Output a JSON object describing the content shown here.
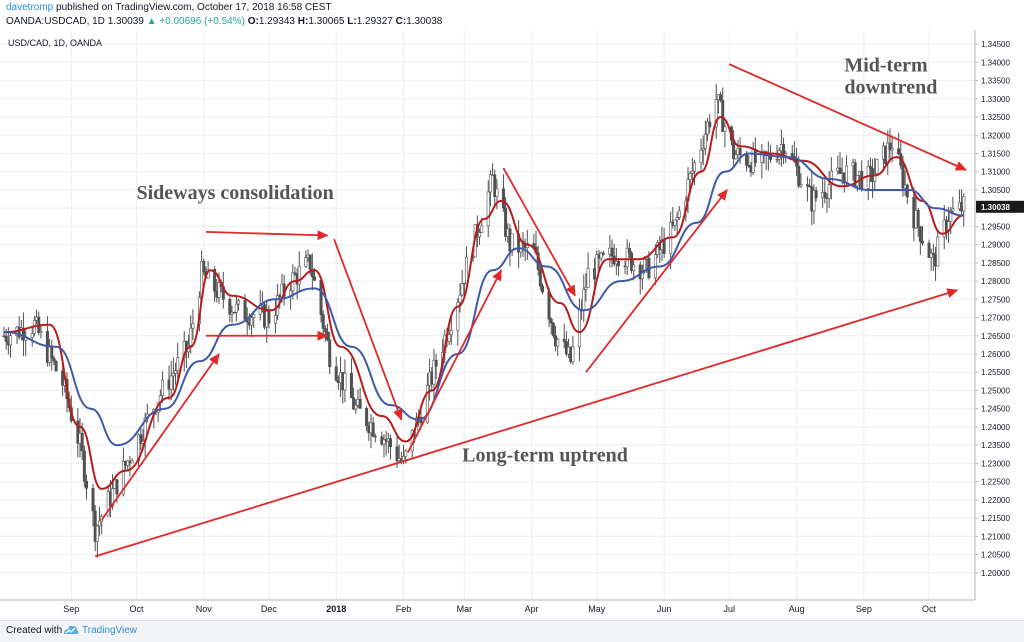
{
  "header": {
    "user": "davetromp",
    "published": "published on TradingView.com, October 17, 2018 16:58 CEST",
    "symbol": "OANDA:USDCAD, 1D",
    "price": "1.30039",
    "change": "+0.00696 (+0.54%)",
    "o_label": "O:",
    "o_value": "1.29343",
    "h_label": "H:",
    "h_value": "1.30065",
    "l_label": "L:",
    "l_value": "1.29327",
    "c_label": "C:",
    "c_value": "1.30038"
  },
  "footer": {
    "made_with": "Created with",
    "brand": "TradingView",
    "logo_icon": "tradingview-logo-icon"
  },
  "chart_data": {
    "type": "candlestick",
    "title": "USD/CAD, 1D, OANDA",
    "xlabel": "",
    "ylabel": "",
    "ylim": [
      1.195,
      1.3475
    ],
    "y_ticks": [
      "1.20000",
      "1.20500",
      "1.21000",
      "1.21500",
      "1.22000",
      "1.22500",
      "1.23000",
      "1.23500",
      "1.24000",
      "1.24500",
      "1.25000",
      "1.25500",
      "1.26000",
      "1.26500",
      "1.27000",
      "1.27500",
      "1.28000",
      "1.28500",
      "1.29000",
      "1.29500",
      "1.30000",
      "1.30500",
      "1.31000",
      "1.31500",
      "1.32000",
      "1.32500",
      "1.33000",
      "1.33500",
      "1.34000",
      "1.34500"
    ],
    "last_price_label": "1.30038",
    "x_range": [
      "2017-08-01",
      "2018-10-30"
    ],
    "x_ticks": [
      {
        "label": "Sep",
        "date": "2017-09-01"
      },
      {
        "label": "Oct",
        "date": "2017-10-01"
      },
      {
        "label": "Nov",
        "date": "2017-11-01"
      },
      {
        "label": "Dec",
        "date": "2017-12-01"
      },
      {
        "label": "2018",
        "date": "2018-01-01"
      },
      {
        "label": "Feb",
        "date": "2018-02-01"
      },
      {
        "label": "Mar",
        "date": "2018-03-01"
      },
      {
        "label": "Apr",
        "date": "2018-04-01"
      },
      {
        "label": "May",
        "date": "2018-05-01"
      },
      {
        "label": "Jun",
        "date": "2018-06-01"
      },
      {
        "label": "Jul",
        "date": "2018-07-01"
      },
      {
        "label": "Aug",
        "date": "2018-08-01"
      },
      {
        "label": "Sep",
        "date": "2018-09-01"
      },
      {
        "label": "Oct",
        "date": "2018-10-01"
      }
    ],
    "price_path": [
      [
        "2017-08-01",
        1.265
      ],
      [
        "2017-08-15",
        1.268
      ],
      [
        "2017-08-28",
        1.252
      ],
      [
        "2017-09-05",
        1.235
      ],
      [
        "2017-09-12",
        1.212
      ],
      [
        "2017-09-20",
        1.222
      ],
      [
        "2017-09-28",
        1.232
      ],
      [
        "2017-10-10",
        1.247
      ],
      [
        "2017-10-25",
        1.262
      ],
      [
        "2017-10-31",
        1.282
      ],
      [
        "2017-11-06",
        1.278
      ],
      [
        "2017-11-16",
        1.272
      ],
      [
        "2017-12-01",
        1.27
      ],
      [
        "2017-12-11",
        1.28
      ],
      [
        "2017-12-20",
        1.285
      ],
      [
        "2017-12-29",
        1.26
      ],
      [
        "2018-01-10",
        1.245
      ],
      [
        "2018-01-22",
        1.238
      ],
      [
        "2018-02-01",
        1.23
      ],
      [
        "2018-02-12",
        1.25
      ],
      [
        "2018-02-23",
        1.27
      ],
      [
        "2018-03-06",
        1.292
      ],
      [
        "2018-03-14",
        1.308
      ],
      [
        "2018-03-22",
        1.29
      ],
      [
        "2018-04-02",
        1.288
      ],
      [
        "2018-04-12",
        1.265
      ],
      [
        "2018-04-19",
        1.258
      ],
      [
        "2018-04-27",
        1.282
      ],
      [
        "2018-05-10",
        1.288
      ],
      [
        "2018-05-24",
        1.283
      ],
      [
        "2018-06-06",
        1.295
      ],
      [
        "2018-06-15",
        1.312
      ],
      [
        "2018-06-25",
        1.33
      ],
      [
        "2018-07-03",
        1.315
      ],
      [
        "2018-07-16",
        1.312
      ],
      [
        "2018-07-26",
        1.318
      ],
      [
        "2018-08-08",
        1.302
      ],
      [
        "2018-08-22",
        1.31
      ],
      [
        "2018-09-04",
        1.308
      ],
      [
        "2018-09-14",
        1.318
      ],
      [
        "2018-09-24",
        1.298
      ],
      [
        "2018-10-03",
        1.285
      ],
      [
        "2018-10-10",
        1.298
      ],
      [
        "2018-10-17",
        1.30038
      ]
    ],
    "series": [
      {
        "label": "MA fast",
        "color": "#b71c1c",
        "points": [
          [
            "2017-08-01",
            1.266
          ],
          [
            "2017-08-22",
            1.268
          ],
          [
            "2017-09-05",
            1.24
          ],
          [
            "2017-09-15",
            1.223
          ],
          [
            "2017-09-26",
            1.228
          ],
          [
            "2017-10-16",
            1.248
          ],
          [
            "2017-10-26",
            1.262
          ],
          [
            "2017-11-04",
            1.283
          ],
          [
            "2017-11-14",
            1.276
          ],
          [
            "2017-12-02",
            1.272
          ],
          [
            "2017-12-13",
            1.28
          ],
          [
            "2017-12-22",
            1.283
          ],
          [
            "2018-01-03",
            1.262
          ],
          [
            "2018-01-22",
            1.243
          ],
          [
            "2018-02-02",
            1.236
          ],
          [
            "2018-02-14",
            1.25
          ],
          [
            "2018-02-26",
            1.273
          ],
          [
            "2018-03-10",
            1.297
          ],
          [
            "2018-03-18",
            1.302
          ],
          [
            "2018-03-30",
            1.29
          ],
          [
            "2018-04-14",
            1.274
          ],
          [
            "2018-04-23",
            1.266
          ],
          [
            "2018-05-06",
            1.286
          ],
          [
            "2018-05-20",
            1.286
          ],
          [
            "2018-06-05",
            1.292
          ],
          [
            "2018-06-18",
            1.31
          ],
          [
            "2018-06-27",
            1.325
          ],
          [
            "2018-07-06",
            1.317
          ],
          [
            "2018-07-20",
            1.315
          ],
          [
            "2018-08-04",
            1.313
          ],
          [
            "2018-08-22",
            1.306
          ],
          [
            "2018-09-06",
            1.309
          ],
          [
            "2018-09-16",
            1.314
          ],
          [
            "2018-09-28",
            1.302
          ],
          [
            "2018-10-07",
            1.293
          ],
          [
            "2018-10-17",
            1.298
          ]
        ]
      },
      {
        "label": "MA slow",
        "color": "#3f5aa8",
        "points": [
          [
            "2017-08-01",
            1.266
          ],
          [
            "2017-08-25",
            1.262
          ],
          [
            "2017-09-10",
            1.245
          ],
          [
            "2017-09-22",
            1.235
          ],
          [
            "2017-10-14",
            1.245
          ],
          [
            "2017-10-30",
            1.258
          ],
          [
            "2017-11-14",
            1.268
          ],
          [
            "2017-12-04",
            1.275
          ],
          [
            "2017-12-22",
            1.278
          ],
          [
            "2018-01-08",
            1.262
          ],
          [
            "2018-01-26",
            1.246
          ],
          [
            "2018-02-08",
            1.242
          ],
          [
            "2018-02-26",
            1.26
          ],
          [
            "2018-03-14",
            1.283
          ],
          [
            "2018-03-26",
            1.289
          ],
          [
            "2018-04-08",
            1.284
          ],
          [
            "2018-04-25",
            1.272
          ],
          [
            "2018-05-12",
            1.28
          ],
          [
            "2018-05-30",
            1.284
          ],
          [
            "2018-06-16",
            1.296
          ],
          [
            "2018-06-29",
            1.31
          ],
          [
            "2018-07-10",
            1.315
          ],
          [
            "2018-07-28",
            1.314
          ],
          [
            "2018-08-16",
            1.308
          ],
          [
            "2018-09-04",
            1.305
          ],
          [
            "2018-09-22",
            1.305
          ],
          [
            "2018-10-04",
            1.3
          ],
          [
            "2018-10-17",
            1.298
          ]
        ]
      }
    ],
    "annotations": [
      {
        "type": "text",
        "id": "sideways",
        "text": "Sideways consolidation",
        "at": [
          "2017-10-01",
          1.3025
        ]
      },
      {
        "type": "text",
        "id": "mid-term-1",
        "text": "Mid-term",
        "at": [
          "2018-08-23",
          1.3375
        ]
      },
      {
        "type": "text",
        "id": "mid-term-2",
        "text": "downtrend",
        "at": [
          "2018-08-23",
          1.3315
        ]
      },
      {
        "type": "text",
        "id": "long-term",
        "text": "Long-term uptrend",
        "at": [
          "2018-02-28",
          1.2305
        ]
      }
    ],
    "arrows": [
      {
        "from": [
          "2017-09-12",
          1.2045
        ],
        "to": [
          "2018-10-14",
          1.2775
        ]
      },
      {
        "from": [
          "2017-09-15",
          1.2145
        ],
        "to": [
          "2017-11-08",
          1.26
        ]
      },
      {
        "from": [
          "2017-11-02",
          1.2935
        ],
        "to": [
          "2017-12-28",
          1.2925
        ]
      },
      {
        "from": [
          "2017-11-02",
          1.265
        ],
        "to": [
          "2017-12-28",
          1.265
        ]
      },
      {
        "from": [
          "2017-12-31",
          1.2915
        ],
        "to": [
          "2018-01-31",
          1.242
        ]
      },
      {
        "from": [
          "2018-02-03",
          1.233
        ],
        "to": [
          "2018-03-18",
          1.283
        ]
      },
      {
        "from": [
          "2018-03-19",
          1.311
        ],
        "to": [
          "2018-04-21",
          1.276
        ]
      },
      {
        "from": [
          "2018-04-26",
          1.255
        ],
        "to": [
          "2018-06-30",
          1.305
        ]
      },
      {
        "from": [
          "2018-07-01",
          1.3395
        ],
        "to": [
          "2018-10-18",
          1.3105
        ]
      }
    ],
    "colors": {
      "candles": "#505050",
      "arrows": "#e02828",
      "grid": "#eceef3",
      "annotation_text": "#555555",
      "last_price_tag": "#1a1a1a"
    }
  }
}
